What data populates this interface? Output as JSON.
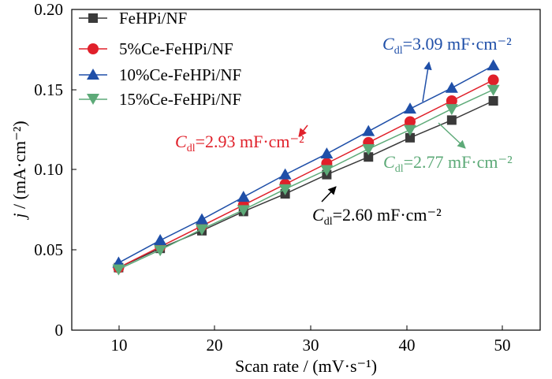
{
  "chart_data": {
    "type": "line",
    "x": [
      10,
      14.44,
      18.89,
      23.33,
      27.78,
      32.22,
      36.67,
      41.11,
      45.56,
      50
    ],
    "xlim": [
      5,
      55
    ],
    "ylim": [
      0,
      0.2
    ],
    "xticks": [
      "10",
      "20",
      "30",
      "40",
      "50"
    ],
    "yticks": [
      "0",
      "0.05",
      "0.10",
      "0.15",
      "0.20"
    ],
    "xlabel": "Scan rate / (mV·s⁻¹)",
    "ylabel_var": "j",
    "ylabel_unit": " / (mA·cm⁻²)",
    "grid": false,
    "legend_position": "top-left",
    "series": [
      {
        "name": "FeHPi/NF",
        "color": "#3a3a3a",
        "marker": "square",
        "values": [
          0.039,
          0.051,
          0.062,
          0.074,
          0.085,
          0.097,
          0.108,
          0.12,
          0.131,
          0.143
        ]
      },
      {
        "name": "5%Ce-FeHPi/NF",
        "color": "#e0202a",
        "marker": "circle",
        "values": [
          0.039,
          0.052,
          0.065,
          0.078,
          0.091,
          0.104,
          0.117,
          0.13,
          0.143,
          0.156
        ]
      },
      {
        "name": "10%Ce-FeHPi/NF",
        "color": "#1f4fa8",
        "marker": "triangle-up",
        "values": [
          0.042,
          0.056,
          0.069,
          0.083,
          0.097,
          0.11,
          0.124,
          0.138,
          0.151,
          0.165
        ]
      },
      {
        "name": "15%Ce-FeHPi/NF",
        "color": "#5daa78",
        "marker": "triangle-down",
        "values": [
          0.038,
          0.05,
          0.063,
          0.075,
          0.088,
          0.1,
          0.113,
          0.125,
          0.138,
          0.15
        ]
      }
    ],
    "annotations": [
      {
        "var": "C",
        "sub": "dl",
        "text": "=3.09 mF·cm⁻²",
        "color": "#1f4fa8"
      },
      {
        "var": "C",
        "sub": "dl",
        "text": "=2.93 mF·cm⁻²",
        "color": "#e0202a"
      },
      {
        "var": "C",
        "sub": "dl",
        "text": "=2.77 mF·cm⁻²",
        "color": "#5daa78"
      },
      {
        "var": "C",
        "sub": "dl",
        "text": "=2.60 mF·cm⁻²",
        "color": "#000000"
      }
    ]
  }
}
